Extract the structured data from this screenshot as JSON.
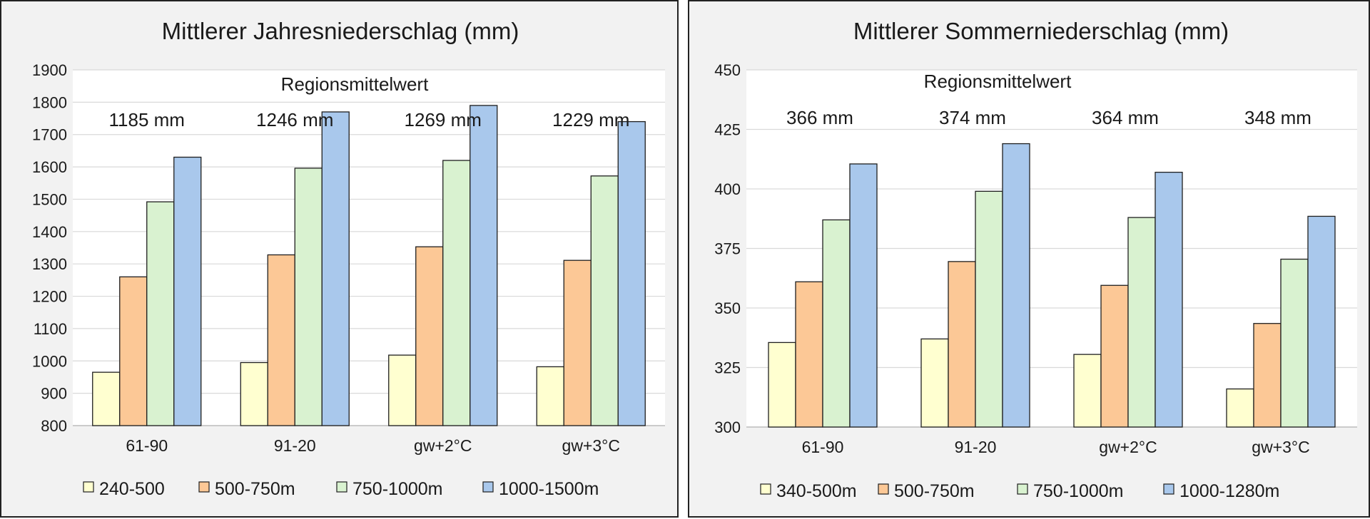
{
  "chart_data": [
    {
      "type": "bar",
      "title": "Mittlerer Jahresniederschlag (mm)",
      "annotation_title": "Regionsmittelwert",
      "category_annotations": [
        "1185 mm",
        "1246 mm",
        "1269 mm",
        "1229  mm"
      ],
      "categories": [
        "61-90",
        "91-20",
        "gw+2°C",
        "gw+3°C"
      ],
      "ylim": [
        800,
        1900
      ],
      "yticks": [
        800,
        900,
        1000,
        1100,
        1200,
        1300,
        1400,
        1500,
        1600,
        1700,
        1800,
        1900
      ],
      "grid": true,
      "legend_position": "bottom",
      "series": [
        {
          "name": "240-500",
          "color": "#ffffd0",
          "values": [
            965,
            995,
            1018,
            982
          ]
        },
        {
          "name": "500-750m",
          "color": "#fcc896",
          "values": [
            1260,
            1328,
            1353,
            1311
          ]
        },
        {
          "name": "750-1000m",
          "color": "#d9f2d0",
          "values": [
            1492,
            1596,
            1620,
            1572
          ]
        },
        {
          "name": "1000-1500m",
          "color": "#a9c8ec",
          "values": [
            1630,
            1770,
            1790,
            1740
          ]
        }
      ]
    },
    {
      "type": "bar",
      "title": "Mittlerer Sommerniederschlag (mm)",
      "annotation_title": "Regionsmittelwert",
      "category_annotations": [
        "366 mm",
        "374 mm",
        "364 mm",
        "348 mm"
      ],
      "categories": [
        "61-90",
        "91-20",
        "gw+2°C",
        "gw+3°C"
      ],
      "ylim": [
        300,
        450
      ],
      "yticks": [
        300,
        325,
        350,
        375,
        400,
        425,
        450
      ],
      "grid": true,
      "legend_position": "bottom",
      "series": [
        {
          "name": "340-500m",
          "color": "#ffffd0",
          "values": [
            335.5,
            337,
            330.5,
            316
          ]
        },
        {
          "name": "500-750m",
          "color": "#fcc896",
          "values": [
            361,
            369.5,
            359.5,
            343.5
          ]
        },
        {
          "name": "750-1000m",
          "color": "#d9f2d0",
          "values": [
            387,
            399,
            388,
            370.5
          ]
        },
        {
          "name": "1000-1280m",
          "color": "#a9c8ec",
          "values": [
            410.5,
            419,
            407,
            388.5
          ]
        }
      ]
    }
  ]
}
